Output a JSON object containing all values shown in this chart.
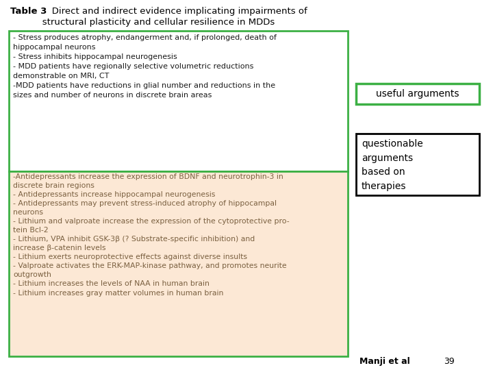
{
  "title_bold": "Table 3",
  "title_rest": "   Direct and indirect evidence implicating impairments of\n           structural plasticity and cellular resilience in MDDs",
  "bg_color": "#ffffff",
  "top_box_bg": "#ffffff",
  "top_box_border": "#3cb044",
  "bottom_box_bg": "#fce8d5",
  "bottom_box_border": "#3cb044",
  "top_text": "- Stress produces atrophy, endangerment and, if prolonged, death of\nhippocampal neurons\n- Stress inhibits hippocampal neurogenesis\n- MDD patients have regionally selective volumetric reductions\ndemonstrable on MRI, CT\n-MDD patients have reductions in glial number and reductions in the\nsizes and number of neurons in discrete brain areas",
  "bottom_text": "-Antidepressants increase the expression of BDNF and neurotrophin-3 in\ndiscrete brain regions\n- Antidepressants increase hippocampal neurogenesis\n- Antidepressants may prevent stress-induced atrophy of hippocampal\nneurons\n- Lithium and valproate increase the expression of the cytoprotective pro-\ntein Bcl-2\n- Lithium, VPA inhibit GSK-3β (? Substrate-specific inhibition) and\nincrease β-catenin levels\n- Lithium exerts neuroprotective effects against diverse insults\n- Valproate activates the ERK-MAP-kinase pathway, and promotes neurite\noutgrowth\n- Lithium increases the levels of NAA in human brain\n- Lithium increases gray matter volumes in human brain",
  "label_useful": "useful arguments",
  "label_useful_border": "#3cb044",
  "label_questionable": "questionable\narguments\nbased on\ntherapies",
  "label_questionable_border": "#000000",
  "footnote_author": "Manji et al",
  "footnote_number": "39",
  "top_text_color": "#1a1a1a",
  "bottom_text_color": "#7a6040",
  "footnote_color": "#000000"
}
